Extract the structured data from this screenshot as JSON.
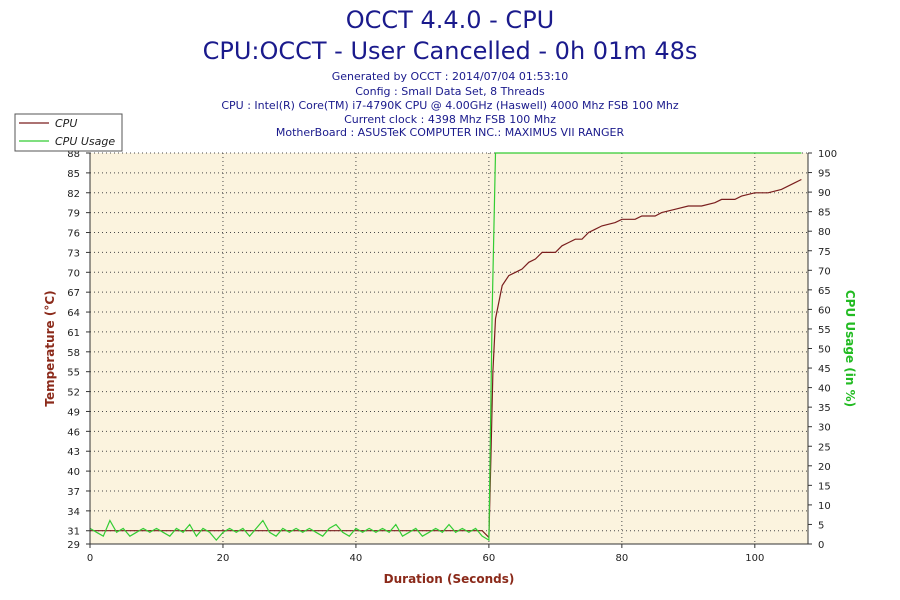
{
  "header": {
    "title": "OCCT 4.4.0 - CPU",
    "subtitle": "CPU:OCCT - User Cancelled - 0h 01m 48s",
    "info_lines": [
      "Generated by OCCT : 2014/07/04 01:53:10",
      "Config : Small Data Set, 8 Threads",
      "CPU : Intel(R) Core(TM) i7-4790K CPU @ 4.00GHz (Haswell) 4000 Mhz FSB 100 Mhz",
      "Current clock : 4398 Mhz FSB 100 Mhz",
      "MotherBoard : ASUSTeK COMPUTER INC.: MAXIMUS VII RANGER"
    ]
  },
  "colors": {
    "plot_bg": "#fbf3de",
    "cpu_line": "#7a1e1e",
    "usage_line": "#33cc33",
    "grid": "#4a4a4a",
    "left_axis_label": "#8b2a1a",
    "right_axis_label": "#22bb22",
    "x_axis_label": "#8b2a1a"
  },
  "chart_data": {
    "type": "line",
    "xlabel": "Duration (Seconds)",
    "ylabel": "Temperature (°C)",
    "y2label": "CPU Usage (in %)",
    "xlim": [
      0,
      108
    ],
    "ylim": [
      29,
      88
    ],
    "y2lim": [
      0,
      100
    ],
    "x_ticks": [
      0,
      20,
      40,
      60,
      80,
      100
    ],
    "y_ticks": [
      29,
      31,
      34,
      37,
      40,
      43,
      46,
      49,
      52,
      55,
      58,
      61,
      64,
      67,
      70,
      73,
      76,
      79,
      82,
      85,
      88
    ],
    "y_tick_labels": [
      "29",
      "31",
      "34",
      "37",
      "40",
      "43",
      "46",
      "49",
      "52",
      "55",
      "58",
      "61",
      "64",
      "67",
      "70",
      "73",
      "76",
      "79",
      "82",
      "85",
      "88"
    ],
    "y2_ticks": [
      0,
      5,
      10,
      15,
      20,
      25,
      30,
      35,
      40,
      45,
      50,
      55,
      60,
      65,
      70,
      75,
      80,
      85,
      90,
      95,
      100
    ],
    "grid": true,
    "legend": "top-left",
    "series": [
      {
        "name": "CPU",
        "axis": "left",
        "points": [
          [
            0,
            31
          ],
          [
            2,
            31
          ],
          [
            3,
            31
          ],
          [
            10,
            31
          ],
          [
            20,
            31
          ],
          [
            30,
            31
          ],
          [
            40,
            31
          ],
          [
            50,
            31
          ],
          [
            59,
            31
          ],
          [
            60,
            30
          ],
          [
            60.3,
            42
          ],
          [
            60.6,
            55
          ],
          [
            61,
            63
          ],
          [
            62,
            68
          ],
          [
            63,
            69.5
          ],
          [
            64,
            70
          ],
          [
            65,
            70.5
          ],
          [
            66,
            71.5
          ],
          [
            67,
            72
          ],
          [
            68,
            73
          ],
          [
            70,
            73
          ],
          [
            71,
            74
          ],
          [
            72,
            74.5
          ],
          [
            73,
            75
          ],
          [
            74,
            75
          ],
          [
            75,
            76
          ],
          [
            76,
            76.5
          ],
          [
            77,
            77
          ],
          [
            79,
            77.5
          ],
          [
            80,
            78
          ],
          [
            82,
            78
          ],
          [
            83,
            78.5
          ],
          [
            85,
            78.5
          ],
          [
            86,
            79
          ],
          [
            88,
            79.5
          ],
          [
            90,
            80
          ],
          [
            92,
            80
          ],
          [
            94,
            80.5
          ],
          [
            95,
            81
          ],
          [
            97,
            81
          ],
          [
            98,
            81.5
          ],
          [
            100,
            82
          ],
          [
            102,
            82
          ],
          [
            104,
            82.5
          ],
          [
            106,
            83.5
          ],
          [
            107,
            84
          ]
        ]
      },
      {
        "name": "CPU Usage",
        "axis": "right",
        "points": [
          [
            0,
            4
          ],
          [
            1,
            3
          ],
          [
            2,
            2
          ],
          [
            3,
            6
          ],
          [
            4,
            3
          ],
          [
            5,
            4
          ],
          [
            6,
            2
          ],
          [
            7,
            3
          ],
          [
            8,
            4
          ],
          [
            9,
            3
          ],
          [
            10,
            4
          ],
          [
            11,
            3
          ],
          [
            12,
            2
          ],
          [
            13,
            4
          ],
          [
            14,
            3
          ],
          [
            15,
            5
          ],
          [
            16,
            2
          ],
          [
            17,
            4
          ],
          [
            18,
            3
          ],
          [
            19,
            1
          ],
          [
            20,
            3
          ],
          [
            21,
            4
          ],
          [
            22,
            3
          ],
          [
            23,
            4
          ],
          [
            24,
            2
          ],
          [
            25,
            4
          ],
          [
            26,
            6
          ],
          [
            27,
            3
          ],
          [
            28,
            2
          ],
          [
            29,
            4
          ],
          [
            30,
            3
          ],
          [
            31,
            4
          ],
          [
            32,
            3
          ],
          [
            33,
            4
          ],
          [
            34,
            3
          ],
          [
            35,
            2
          ],
          [
            36,
            4
          ],
          [
            37,
            5
          ],
          [
            38,
            3
          ],
          [
            39,
            2
          ],
          [
            40,
            4
          ],
          [
            41,
            3
          ],
          [
            42,
            4
          ],
          [
            43,
            3
          ],
          [
            44,
            4
          ],
          [
            45,
            3
          ],
          [
            46,
            5
          ],
          [
            47,
            2
          ],
          [
            48,
            3
          ],
          [
            49,
            4
          ],
          [
            50,
            2
          ],
          [
            51,
            3
          ],
          [
            52,
            4
          ],
          [
            53,
            3
          ],
          [
            54,
            5
          ],
          [
            55,
            3
          ],
          [
            56,
            4
          ],
          [
            57,
            3
          ],
          [
            58,
            4
          ],
          [
            59,
            2
          ],
          [
            60,
            1
          ],
          [
            60.5,
            60
          ],
          [
            61,
            100
          ],
          [
            107,
            100
          ]
        ]
      }
    ]
  }
}
